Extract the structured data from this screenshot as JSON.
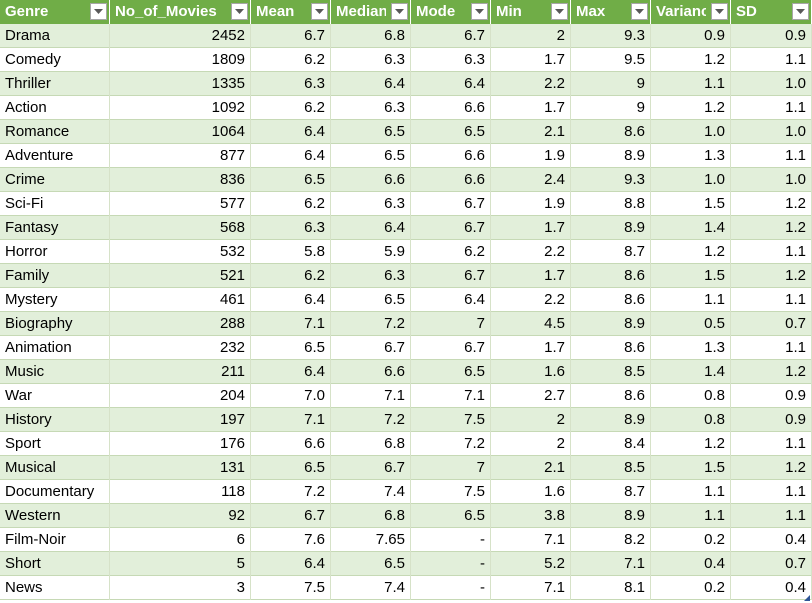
{
  "columns": [
    {
      "label": "Genre",
      "width": 110,
      "align": "txt"
    },
    {
      "label": "No_of_Movies",
      "width": 141,
      "align": "num"
    },
    {
      "label": "Mean",
      "width": 80,
      "align": "num"
    },
    {
      "label": "Median",
      "width": 80,
      "align": "num"
    },
    {
      "label": "Mode",
      "width": 80,
      "align": "num"
    },
    {
      "label": "Min",
      "width": 80,
      "align": "num"
    },
    {
      "label": "Max",
      "width": 80,
      "align": "num"
    },
    {
      "label": "Variance",
      "width": 80,
      "align": "num"
    },
    {
      "label": "SD",
      "width": 81,
      "align": "num"
    }
  ],
  "rows": [
    [
      "Drama",
      "2452",
      "6.7",
      "6.8",
      "6.7",
      "2",
      "9.3",
      "0.9",
      "0.9"
    ],
    [
      "Comedy",
      "1809",
      "6.2",
      "6.3",
      "6.3",
      "1.7",
      "9.5",
      "1.2",
      "1.1"
    ],
    [
      "Thriller",
      "1335",
      "6.3",
      "6.4",
      "6.4",
      "2.2",
      "9",
      "1.1",
      "1.0"
    ],
    [
      "Action",
      "1092",
      "6.2",
      "6.3",
      "6.6",
      "1.7",
      "9",
      "1.2",
      "1.1"
    ],
    [
      "Romance",
      "1064",
      "6.4",
      "6.5",
      "6.5",
      "2.1",
      "8.6",
      "1.0",
      "1.0"
    ],
    [
      "Adventure",
      "877",
      "6.4",
      "6.5",
      "6.6",
      "1.9",
      "8.9",
      "1.3",
      "1.1"
    ],
    [
      "Crime",
      "836",
      "6.5",
      "6.6",
      "6.6",
      "2.4",
      "9.3",
      "1.0",
      "1.0"
    ],
    [
      "Sci-Fi",
      "577",
      "6.2",
      "6.3",
      "6.7",
      "1.9",
      "8.8",
      "1.5",
      "1.2"
    ],
    [
      "Fantasy",
      "568",
      "6.3",
      "6.4",
      "6.7",
      "1.7",
      "8.9",
      "1.4",
      "1.2"
    ],
    [
      "Horror",
      "532",
      "5.8",
      "5.9",
      "6.2",
      "2.2",
      "8.7",
      "1.2",
      "1.1"
    ],
    [
      "Family",
      "521",
      "6.2",
      "6.3",
      "6.7",
      "1.7",
      "8.6",
      "1.5",
      "1.2"
    ],
    [
      "Mystery",
      "461",
      "6.4",
      "6.5",
      "6.4",
      "2.2",
      "8.6",
      "1.1",
      "1.1"
    ],
    [
      "Biography",
      "288",
      "7.1",
      "7.2",
      "7",
      "4.5",
      "8.9",
      "0.5",
      "0.7"
    ],
    [
      "Animation",
      "232",
      "6.5",
      "6.7",
      "6.7",
      "1.7",
      "8.6",
      "1.3",
      "1.1"
    ],
    [
      "Music",
      "211",
      "6.4",
      "6.6",
      "6.5",
      "1.6",
      "8.5",
      "1.4",
      "1.2"
    ],
    [
      "War",
      "204",
      "7.0",
      "7.1",
      "7.1",
      "2.7",
      "8.6",
      "0.8",
      "0.9"
    ],
    [
      "History",
      "197",
      "7.1",
      "7.2",
      "7.5",
      "2",
      "8.9",
      "0.8",
      "0.9"
    ],
    [
      "Sport",
      "176",
      "6.6",
      "6.8",
      "7.2",
      "2",
      "8.4",
      "1.2",
      "1.1"
    ],
    [
      "Musical",
      "131",
      "6.5",
      "6.7",
      "7",
      "2.1",
      "8.5",
      "1.5",
      "1.2"
    ],
    [
      "Documentary",
      "118",
      "7.2",
      "7.4",
      "7.5",
      "1.6",
      "8.7",
      "1.1",
      "1.1"
    ],
    [
      "Western",
      "92",
      "6.7",
      "6.8",
      "6.5",
      "3.8",
      "8.9",
      "1.1",
      "1.1"
    ],
    [
      "Film-Noir",
      "6",
      "7.6",
      "7.65",
      "-",
      "7.1",
      "8.2",
      "0.2",
      "0.4"
    ],
    [
      "Short",
      "5",
      "6.4",
      "6.5",
      "-",
      "5.2",
      "7.1",
      "0.4",
      "0.7"
    ],
    [
      "News",
      "3",
      "7.5",
      "7.4",
      "-",
      "7.1",
      "8.1",
      "0.2",
      "0.4"
    ]
  ],
  "colors": {
    "header": "#70ad47",
    "band": "#e2efda",
    "text": "#000000"
  },
  "icons": {
    "filter": "dropdown-arrow-icon",
    "resize": "table-resize-handle-icon"
  }
}
